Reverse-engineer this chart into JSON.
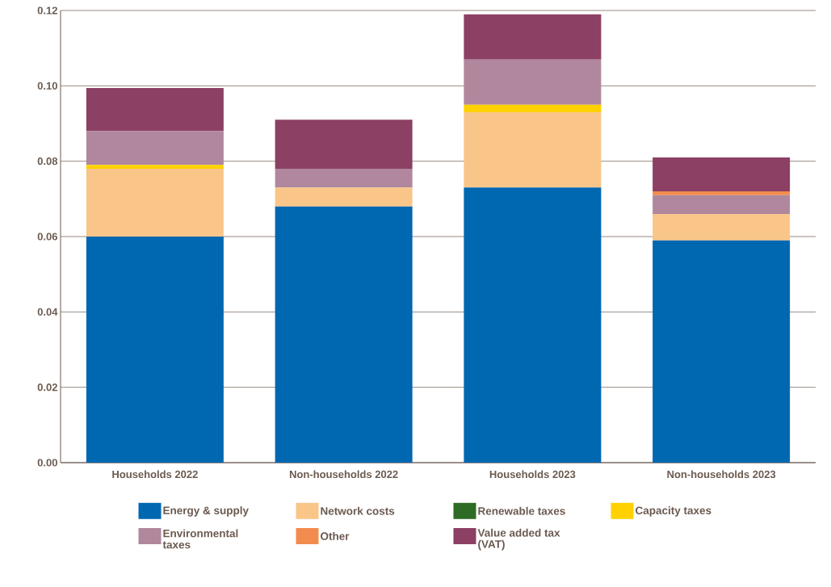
{
  "chart_data": {
    "type": "bar",
    "stacked": true,
    "grid": "y",
    "legend": "bottom",
    "categories": [
      "Households 2022",
      "Non-households 2022",
      "Households 2023",
      "Non-households 2023"
    ],
    "ylim": [
      0,
      0.12
    ],
    "yticks": [
      {
        "value": 0,
        "label": "0.00"
      },
      {
        "value": 0.02,
        "label": "0.02"
      },
      {
        "value": 0.04,
        "label": "0.04"
      },
      {
        "value": 0.06,
        "label": "0.06"
      },
      {
        "value": 0.08,
        "label": "0.08"
      },
      {
        "value": 0.1,
        "label": "0.10"
      },
      {
        "value": 0.12,
        "label": "0.12"
      }
    ],
    "series": [
      {
        "name": "Energy & supply",
        "color": "#0067b1",
        "values": [
          0.06,
          0.068,
          0.073,
          0.059
        ]
      },
      {
        "name": "Network costs",
        "color": "#f9c589",
        "values": [
          0.018,
          0.005,
          0.02,
          0.007
        ]
      },
      {
        "name": "Renewable taxes",
        "color": "#2e6b24",
        "values": [
          0,
          0,
          0,
          0
        ]
      },
      {
        "name": "Capacity taxes",
        "color": "#ffd100",
        "values": [
          0.001,
          0,
          0.002,
          0
        ]
      },
      {
        "name": "Environmental taxes",
        "color": "#b0879c",
        "values": [
          0.009,
          0.005,
          0.012,
          0.005
        ]
      },
      {
        "name": "Other",
        "color": "#f28c4e",
        "values": [
          0,
          0,
          0,
          0.001
        ]
      },
      {
        "name": "Value added tax (VAT)",
        "color": "#8c4063",
        "values": [
          0.0114,
          0.013,
          0.012,
          0.009
        ]
      }
    ]
  }
}
